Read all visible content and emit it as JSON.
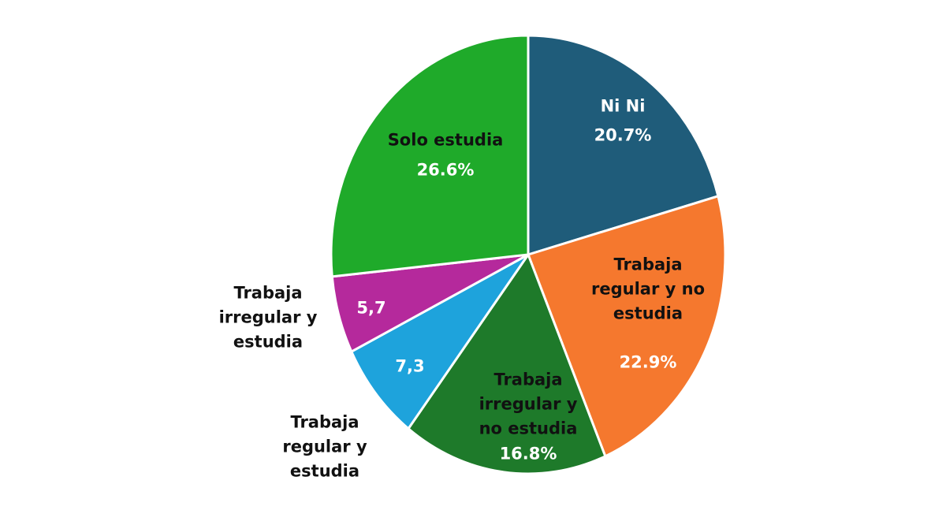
{
  "chart_data": {
    "type": "pie",
    "categories": [
      "Ni Ni",
      "Trabaja regular y no estudia",
      "Trabaja irregular y no estudia",
      "Trabaja regular y estudia",
      "Trabaja irregular y estudia",
      "Solo estudia"
    ],
    "values": [
      20.7,
      22.9,
      16.8,
      7.3,
      5.7,
      26.6
    ],
    "value_labels": [
      "20.7%",
      "22.9%",
      "16.8%",
      "7,3",
      "5,7",
      "26.6%"
    ],
    "colors": [
      "#1f5c7a",
      "#f5782e",
      "#1e7a2a",
      "#1ea3dc",
      "#b5299c",
      "#1faa2a"
    ]
  }
}
